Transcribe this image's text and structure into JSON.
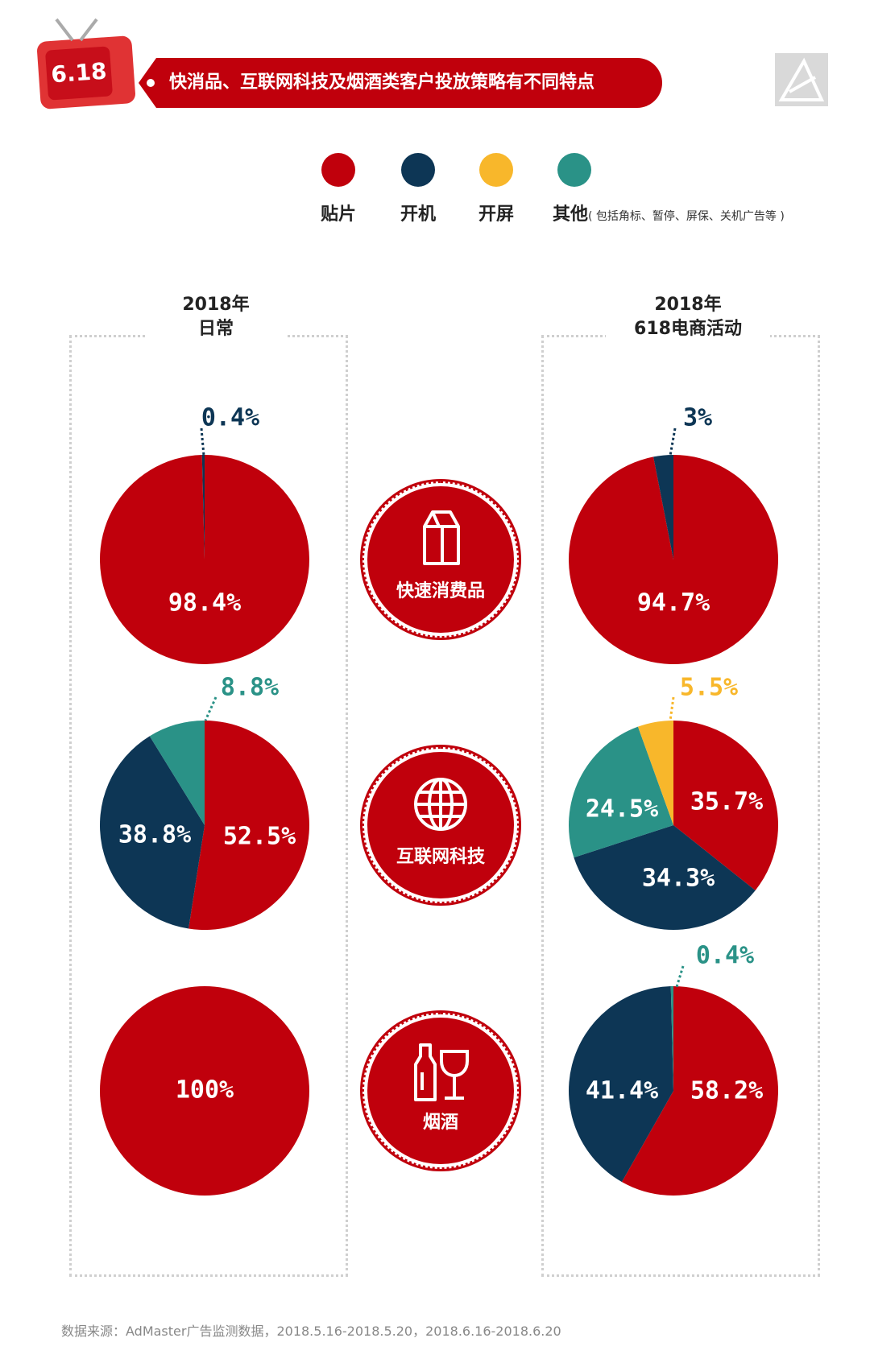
{
  "header": {
    "badge": "6.18",
    "title": "快消品、互联网科技及烟酒类客户投放策略有不同特点"
  },
  "legend": [
    {
      "label": "贴片",
      "color": "#c0000c"
    },
    {
      "label": "开机",
      "color": "#0d3655"
    },
    {
      "label": "开屏",
      "color": "#f8b72b"
    },
    {
      "label": "其他",
      "note": "( 包括角标、暂停、屏保、关机广告等 )",
      "color": "#2a9287"
    }
  ],
  "columns": {
    "left": {
      "line1": "2018年",
      "line2": "日常"
    },
    "right": {
      "line1": "2018年",
      "line2": "618电商活动"
    }
  },
  "categories": [
    {
      "label": "快速消费品",
      "icon": "milk-carton-icon"
    },
    {
      "label": "互联网科技",
      "icon": "globe-icon"
    },
    {
      "label": "烟酒",
      "icon": "bottle-glass-icon"
    }
  ],
  "chart_data": [
    {
      "type": "pie",
      "category": "快速消费品",
      "period": "2018年日常",
      "slices": [
        {
          "name": "贴片",
          "value": 98.4,
          "label": "98.4%"
        },
        {
          "name": "开机",
          "value": 0.4,
          "label": "0.4%"
        }
      ]
    },
    {
      "type": "pie",
      "category": "快速消费品",
      "period": "2018年618电商活动",
      "slices": [
        {
          "name": "贴片",
          "value": 94.7,
          "label": "94.7%"
        },
        {
          "name": "开机",
          "value": 3,
          "label": "3%"
        }
      ]
    },
    {
      "type": "pie",
      "category": "互联网科技",
      "period": "2018年日常",
      "slices": [
        {
          "name": "贴片",
          "value": 52.5,
          "label": "52.5%"
        },
        {
          "name": "开机",
          "value": 38.8,
          "label": "38.8%"
        },
        {
          "name": "其他",
          "value": 8.8,
          "label": "8.8%"
        }
      ]
    },
    {
      "type": "pie",
      "category": "互联网科技",
      "period": "2018年618电商活动",
      "slices": [
        {
          "name": "贴片",
          "value": 35.7,
          "label": "35.7%"
        },
        {
          "name": "开机",
          "value": 34.3,
          "label": "34.3%"
        },
        {
          "name": "其他",
          "value": 24.5,
          "label": "24.5%"
        },
        {
          "name": "开屏",
          "value": 5.5,
          "label": "5.5%"
        }
      ]
    },
    {
      "type": "pie",
      "category": "烟酒",
      "period": "2018年日常",
      "slices": [
        {
          "name": "贴片",
          "value": 100,
          "label": "100%"
        }
      ]
    },
    {
      "type": "pie",
      "category": "烟酒",
      "period": "2018年618电商活动",
      "slices": [
        {
          "name": "贴片",
          "value": 58.2,
          "label": "58.2%"
        },
        {
          "name": "开机",
          "value": 41.4,
          "label": "41.4%"
        },
        {
          "name": "其他",
          "value": 0.4,
          "label": "0.4%"
        }
      ]
    }
  ],
  "source": "数据来源：AdMaster广告监测数据，2018.5.16-2018.5.20，2018.6.16-2018.6.20"
}
